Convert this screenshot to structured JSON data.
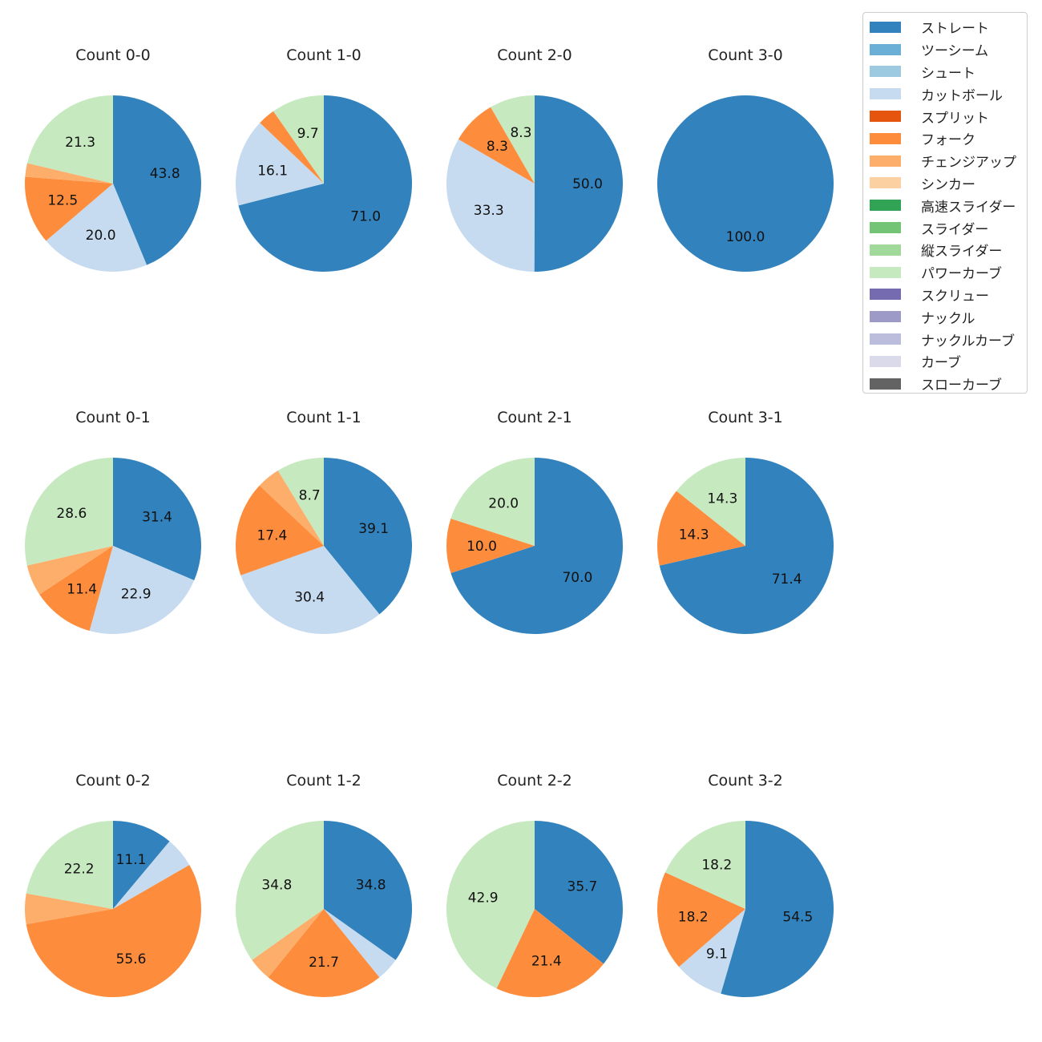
{
  "legend": [
    {
      "label": "ストレート",
      "color": "#3182bd"
    },
    {
      "label": "ツーシーム",
      "color": "#6baed6"
    },
    {
      "label": "シュート",
      "color": "#9ecae1"
    },
    {
      "label": "カットボール",
      "color": "#c6dbef"
    },
    {
      "label": "スプリット",
      "color": "#e6550d"
    },
    {
      "label": "フォーク",
      "color": "#fd8d3c"
    },
    {
      "label": "チェンジアップ",
      "color": "#fdae6b"
    },
    {
      "label": "シンカー",
      "color": "#fdd0a2"
    },
    {
      "label": "高速スライダー",
      "color": "#31a354"
    },
    {
      "label": "スライダー",
      "color": "#74c476"
    },
    {
      "label": "縦スライダー",
      "color": "#a1d99b"
    },
    {
      "label": "パワーカーブ",
      "color": "#c7e9c0"
    },
    {
      "label": "スクリュー",
      "color": "#756bb1"
    },
    {
      "label": "ナックル",
      "color": "#9e9ac8"
    },
    {
      "label": "ナックルカーブ",
      "color": "#bcbddc"
    },
    {
      "label": "カーブ",
      "color": "#dadaeb"
    },
    {
      "label": "スローカーブ",
      "color": "#636363"
    }
  ],
  "chart_data": [
    {
      "type": "pie",
      "title": "Count 0-0",
      "slices": [
        {
          "pitch": "ストレート",
          "value": 43.8,
          "label": "43.8"
        },
        {
          "pitch": "カットボール",
          "value": 20.0,
          "label": "20.0"
        },
        {
          "pitch": "フォーク",
          "value": 12.5,
          "label": "12.5"
        },
        {
          "pitch": "チェンジアップ",
          "value": 2.5,
          "label": ""
        },
        {
          "pitch": "パワーカーブ",
          "value": 21.3,
          "label": "21.3"
        }
      ]
    },
    {
      "type": "pie",
      "title": "Count 1-0",
      "slices": [
        {
          "pitch": "ストレート",
          "value": 71.0,
          "label": "71.0"
        },
        {
          "pitch": "カットボール",
          "value": 16.1,
          "label": "16.1"
        },
        {
          "pitch": "フォーク",
          "value": 3.2,
          "label": ""
        },
        {
          "pitch": "パワーカーブ",
          "value": 9.7,
          "label": "9.7"
        }
      ]
    },
    {
      "type": "pie",
      "title": "Count 2-0",
      "slices": [
        {
          "pitch": "ストレート",
          "value": 50.0,
          "label": "50.0"
        },
        {
          "pitch": "カットボール",
          "value": 33.3,
          "label": "33.3"
        },
        {
          "pitch": "フォーク",
          "value": 8.3,
          "label": "8.3"
        },
        {
          "pitch": "パワーカーブ",
          "value": 8.3,
          "label": "8.3"
        }
      ]
    },
    {
      "type": "pie",
      "title": "Count 3-0",
      "slices": [
        {
          "pitch": "ストレート",
          "value": 100.0,
          "label": "100.0"
        }
      ]
    },
    {
      "type": "pie",
      "title": "Count 0-1",
      "slices": [
        {
          "pitch": "ストレート",
          "value": 31.4,
          "label": "31.4"
        },
        {
          "pitch": "カットボール",
          "value": 22.9,
          "label": "22.9"
        },
        {
          "pitch": "フォーク",
          "value": 11.4,
          "label": "11.4"
        },
        {
          "pitch": "チェンジアップ",
          "value": 5.7,
          "label": ""
        },
        {
          "pitch": "パワーカーブ",
          "value": 28.6,
          "label": "28.6"
        }
      ]
    },
    {
      "type": "pie",
      "title": "Count 1-1",
      "slices": [
        {
          "pitch": "ストレート",
          "value": 39.1,
          "label": "39.1"
        },
        {
          "pitch": "カットボール",
          "value": 30.4,
          "label": "30.4"
        },
        {
          "pitch": "フォーク",
          "value": 17.4,
          "label": "17.4"
        },
        {
          "pitch": "チェンジアップ",
          "value": 4.3,
          "label": ""
        },
        {
          "pitch": "パワーカーブ",
          "value": 8.7,
          "label": "8.7"
        }
      ]
    },
    {
      "type": "pie",
      "title": "Count 2-1",
      "slices": [
        {
          "pitch": "ストレート",
          "value": 70.0,
          "label": "70.0"
        },
        {
          "pitch": "フォーク",
          "value": 10.0,
          "label": "10.0"
        },
        {
          "pitch": "パワーカーブ",
          "value": 20.0,
          "label": "20.0"
        }
      ]
    },
    {
      "type": "pie",
      "title": "Count 3-1",
      "slices": [
        {
          "pitch": "ストレート",
          "value": 71.4,
          "label": "71.4"
        },
        {
          "pitch": "フォーク",
          "value": 14.3,
          "label": "14.3"
        },
        {
          "pitch": "パワーカーブ",
          "value": 14.3,
          "label": "14.3"
        }
      ]
    },
    {
      "type": "pie",
      "title": "Count 0-2",
      "slices": [
        {
          "pitch": "ストレート",
          "value": 11.1,
          "label": "11.1"
        },
        {
          "pitch": "カットボール",
          "value": 5.6,
          "label": ""
        },
        {
          "pitch": "フォーク",
          "value": 55.6,
          "label": "55.6"
        },
        {
          "pitch": "チェンジアップ",
          "value": 5.6,
          "label": ""
        },
        {
          "pitch": "パワーカーブ",
          "value": 22.2,
          "label": "22.2"
        }
      ]
    },
    {
      "type": "pie",
      "title": "Count 1-2",
      "slices": [
        {
          "pitch": "ストレート",
          "value": 34.8,
          "label": "34.8"
        },
        {
          "pitch": "カットボール",
          "value": 4.3,
          "label": ""
        },
        {
          "pitch": "フォーク",
          "value": 21.7,
          "label": "21.7"
        },
        {
          "pitch": "チェンジアップ",
          "value": 4.3,
          "label": ""
        },
        {
          "pitch": "パワーカーブ",
          "value": 34.8,
          "label": "34.8"
        }
      ]
    },
    {
      "type": "pie",
      "title": "Count 2-2",
      "slices": [
        {
          "pitch": "ストレート",
          "value": 35.7,
          "label": "35.7"
        },
        {
          "pitch": "フォーク",
          "value": 21.4,
          "label": "21.4"
        },
        {
          "pitch": "パワーカーブ",
          "value": 42.9,
          "label": "42.9"
        }
      ]
    },
    {
      "type": "pie",
      "title": "Count 3-2",
      "slices": [
        {
          "pitch": "ストレート",
          "value": 54.5,
          "label": "54.5"
        },
        {
          "pitch": "カットボール",
          "value": 9.1,
          "label": "9.1"
        },
        {
          "pitch": "フォーク",
          "value": 18.2,
          "label": "18.2"
        },
        {
          "pitch": "パワーカーブ",
          "value": 18.2,
          "label": "18.2"
        }
      ]
    }
  ]
}
